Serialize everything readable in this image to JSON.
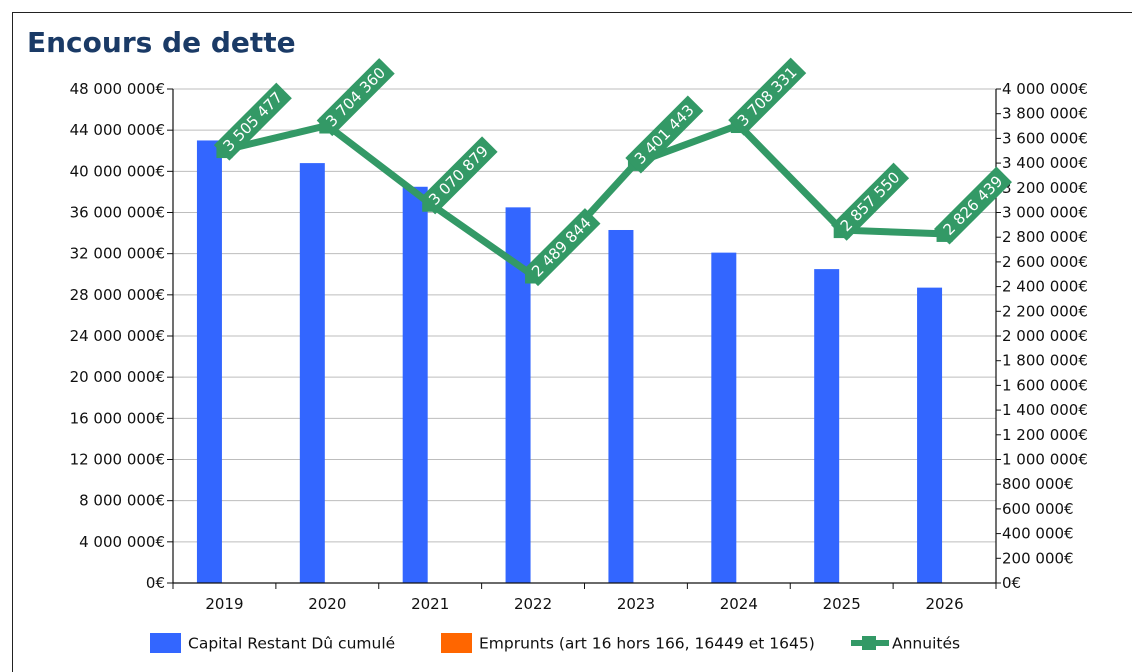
{
  "title": "Encours de dette",
  "colors": {
    "capital": "#3366ff",
    "emprunts": "#ff6600",
    "annuites": "#339966",
    "grid": "#bdbdbd",
    "title": "#1a3a66"
  },
  "chart_data": {
    "type": "bar",
    "title": "Encours de dette",
    "categories": [
      "2019",
      "2020",
      "2021",
      "2022",
      "2023",
      "2024",
      "2025",
      "2026"
    ],
    "y_left": {
      "lim": [
        0,
        48000000
      ],
      "ticks": [
        "0€",
        "4 000 000€",
        "8 000 000€",
        "12 000 000€",
        "16 000 000€",
        "20 000 000€",
        "24 000 000€",
        "28 000 000€",
        "32 000 000€",
        "36 000 000€",
        "40 000 000€",
        "44 000 000€",
        "48 000 000€"
      ]
    },
    "y_right": {
      "lim": [
        0,
        4000000
      ],
      "ticks": [
        "0€",
        "200 000€",
        "400 000€",
        "600 000€",
        "800 000€",
        "1 000 000€",
        "1 200 000€",
        "1 400 000€",
        "1 600 000€",
        "1 800 000€",
        "2 000 000€",
        "2 200 000€",
        "2 400 000€",
        "2 600 000€",
        "2 800 000€",
        "3 000 000€",
        "3 200 000€",
        "3 400 000€",
        "3 600 000€",
        "3 800 000€",
        "4 000 000€"
      ]
    },
    "series": [
      {
        "name": "Capital Restant Dû cumulé",
        "type": "bar",
        "axis": "left",
        "values": [
          43000000,
          40800000,
          38500000,
          36500000,
          34300000,
          32100000,
          30500000,
          28700000
        ]
      },
      {
        "name": "Emprunts (art 16 hors 166, 16449 et 1645)",
        "type": "bar",
        "axis": "left",
        "values": [
          0,
          0,
          0,
          0,
          0,
          0,
          0,
          0
        ]
      },
      {
        "name": "Annuités",
        "type": "line",
        "axis": "right",
        "values": [
          3505477,
          3704360,
          3070879,
          2489844,
          3401443,
          3708331,
          2857550,
          2826439
        ],
        "labels": [
          "3 505 477",
          "3 704 360",
          "3 070 879",
          "2 489 844",
          "3 401 443",
          "3 708 331",
          "2 857 550",
          "2 826 439"
        ]
      }
    ],
    "grid": true,
    "legend": "bottom"
  }
}
